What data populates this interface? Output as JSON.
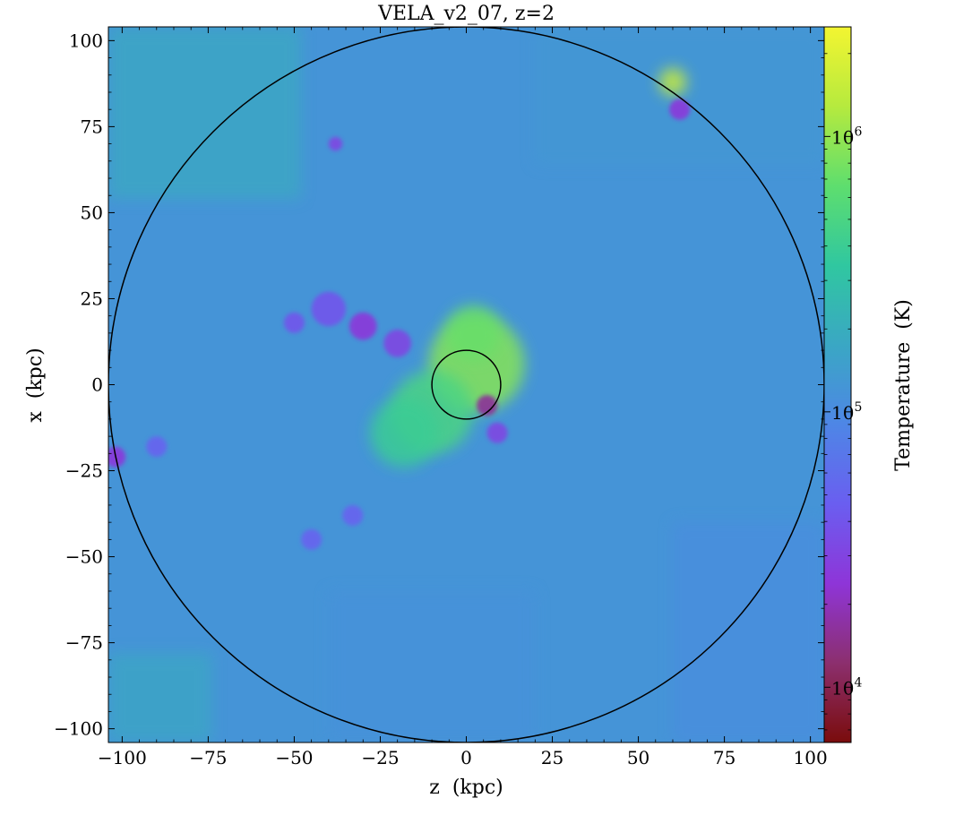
{
  "chart_data": {
    "type": "heatmap",
    "title": "VELA_v2_07, z=2",
    "xlabel": "z  (kpc)",
    "ylabel": "x  (kpc)",
    "xlim": [
      -104,
      104
    ],
    "ylim": [
      -104,
      104
    ],
    "x_ticks": [
      -100,
      -75,
      -50,
      -25,
      0,
      25,
      50,
      75,
      100
    ],
    "y_ticks": [
      -100,
      -75,
      -50,
      -25,
      0,
      25,
      50,
      75,
      100
    ],
    "x_tick_labels": [
      "−100",
      "−75",
      "−50",
      "−25",
      "0",
      "25",
      "50",
      "75",
      "100"
    ],
    "y_tick_labels": [
      "−100",
      "−75",
      "−50",
      "−25",
      "0",
      "25",
      "50",
      "75",
      "100"
    ],
    "colorbar": {
      "label": "Temperature  (K)",
      "scale": "log",
      "range": [
        6300,
        2500000
      ],
      "ticks": [
        10000,
        100000,
        1000000
      ],
      "tick_labels": [
        {
          "base": "10",
          "exp": "4"
        },
        {
          "base": "10",
          "exp": "5"
        },
        {
          "base": "10",
          "exp": "6"
        }
      ],
      "colors": [
        "#7a0c0c",
        "#8c2f6e",
        "#8e35d8",
        "#6a5ef0",
        "#4e86e6",
        "#3aa7c4",
        "#30c7a0",
        "#5ede6e",
        "#b6ea3e",
        "#f3f531"
      ]
    },
    "circles": [
      {
        "name": "outer-radius",
        "center": [
          0,
          0
        ],
        "radius": 104
      },
      {
        "name": "inner-radius",
        "center": [
          0,
          0
        ],
        "radius": 10
      }
    ],
    "background_temperature_K": 120000,
    "features": [
      {
        "kind": "hot",
        "center": [
          3,
          6
        ],
        "radius": 14,
        "log_t": 5.95
      },
      {
        "kind": "hot",
        "center": [
          -10,
          -8
        ],
        "radius": 12,
        "log_t": 5.7
      },
      {
        "kind": "hot",
        "center": [
          -18,
          -14
        ],
        "radius": 10,
        "log_t": 5.6
      },
      {
        "kind": "hot",
        "center": [
          2,
          15
        ],
        "radius": 8,
        "log_t": 5.85
      },
      {
        "kind": "hot",
        "center": [
          60,
          88
        ],
        "radius": 4,
        "log_t": 6.2
      },
      {
        "kind": "cold",
        "center": [
          -40,
          22
        ],
        "radius": 5,
        "log_t": 4.6
      },
      {
        "kind": "cold",
        "center": [
          -30,
          17
        ],
        "radius": 4,
        "log_t": 4.4
      },
      {
        "kind": "cold",
        "center": [
          -20,
          12
        ],
        "radius": 4,
        "log_t": 4.5
      },
      {
        "kind": "cold",
        "center": [
          -50,
          18
        ],
        "radius": 3,
        "log_t": 4.6
      },
      {
        "kind": "cold",
        "center": [
          6,
          -6
        ],
        "radius": 3,
        "log_t": 4.2
      },
      {
        "kind": "cold",
        "center": [
          9,
          -14
        ],
        "radius": 3,
        "log_t": 4.5
      },
      {
        "kind": "cold",
        "center": [
          62,
          80
        ],
        "radius": 3,
        "log_t": 4.4
      },
      {
        "kind": "cold",
        "center": [
          -102,
          -21
        ],
        "radius": 3,
        "log_t": 4.4
      },
      {
        "kind": "cold",
        "center": [
          -90,
          -18
        ],
        "radius": 3,
        "log_t": 4.7
      },
      {
        "kind": "cold",
        "center": [
          -38,
          70
        ],
        "radius": 2,
        "log_t": 4.5
      },
      {
        "kind": "cold",
        "center": [
          -45,
          -45
        ],
        "radius": 3,
        "log_t": 4.7
      },
      {
        "kind": "cold",
        "center": [
          -33,
          -38
        ],
        "radius": 3,
        "log_t": 4.7
      }
    ]
  }
}
